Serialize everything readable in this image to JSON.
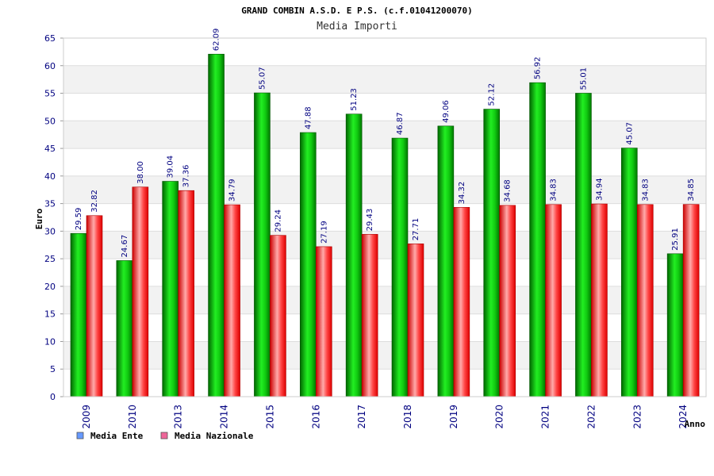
{
  "chart_data": {
    "type": "bar",
    "title": "GRAND COMBIN A.S.D. E P.S. (c.f.01041200070)",
    "subtitle": "Media Importi",
    "xlabel": "Anno",
    "ylabel": "Euro",
    "ylim": [
      0,
      65
    ],
    "yticks": [
      0,
      5,
      10,
      15,
      20,
      25,
      30,
      35,
      40,
      45,
      50,
      55,
      60,
      65
    ],
    "grid": true,
    "legend_position": "bottom-left",
    "categories": [
      "2009",
      "2010",
      "2013",
      "2014",
      "2015",
      "2016",
      "2017",
      "2018",
      "2019",
      "2020",
      "2021",
      "2022",
      "2023",
      "2024"
    ],
    "series": [
      {
        "name": "Media Ente",
        "color": "#00cc00",
        "legend_color": "#6699ff",
        "values": [
          29.59,
          24.67,
          39.04,
          62.09,
          55.07,
          47.88,
          51.23,
          46.87,
          49.06,
          52.12,
          56.92,
          55.01,
          45.07,
          25.91
        ],
        "labels": [
          "29.59",
          "24.67",
          "39.04",
          "62.09",
          "55.07",
          "47.88",
          "51.23",
          "46.87",
          "49.06",
          "52.12",
          "56.92",
          "55.01",
          "45.07",
          "25.91"
        ]
      },
      {
        "name": "Media Nazionale",
        "color": "#ee1111",
        "legend_color": "#ee6699",
        "values": [
          32.82,
          38.0,
          37.36,
          34.79,
          29.24,
          27.19,
          29.43,
          27.71,
          34.32,
          34.68,
          34.83,
          34.94,
          34.83,
          34.85
        ],
        "labels": [
          "32.82",
          "38.00",
          "37.36",
          "34.79",
          "29.24",
          "27.19",
          "29.43",
          "27.71",
          "34.32",
          "34.68",
          "34.83",
          "34.94",
          "34.83",
          "34.85"
        ]
      }
    ]
  }
}
